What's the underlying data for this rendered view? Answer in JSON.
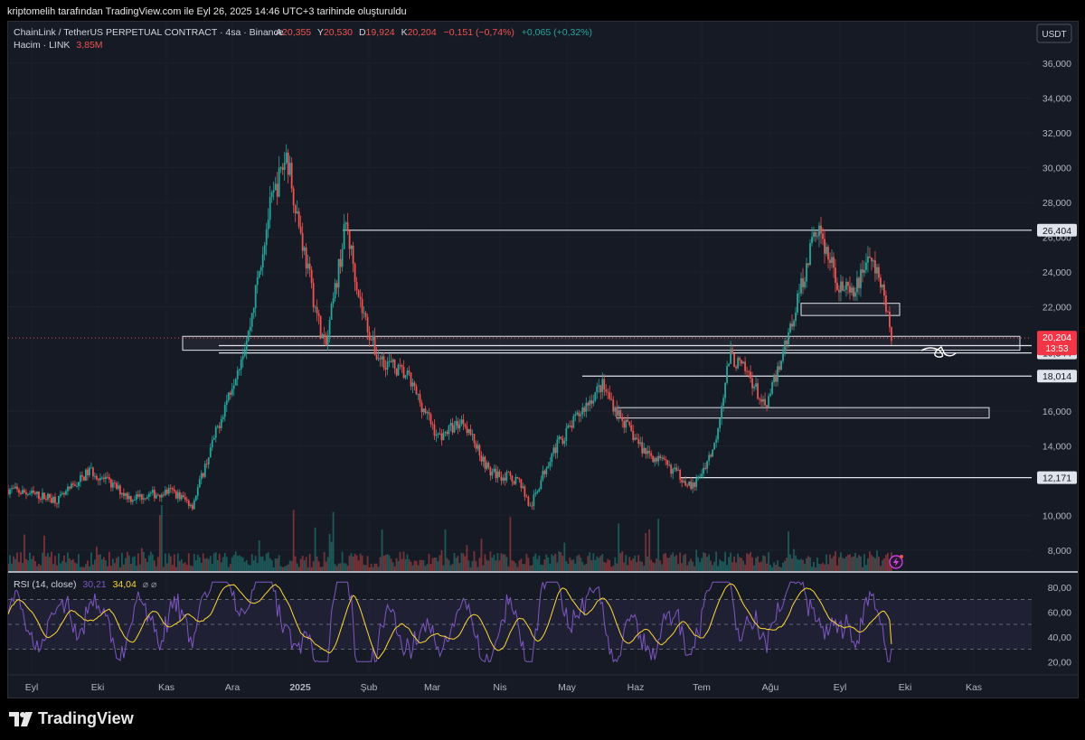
{
  "header": {
    "text": "kriptomelih tarafından TradingView.com ile Eyl 26, 2025 14:46 UTC+3 tarihinde oluşturuldu"
  },
  "legend": {
    "symbol": "ChainLink / TetherUS PERPETUAL CONTRACT · 4sa · Binance",
    "ohlc": [
      {
        "label": "A",
        "value": "20,355"
      },
      {
        "label": "Y",
        "value": "20,530"
      },
      {
        "label": "D",
        "value": "19,924"
      },
      {
        "label": "K",
        "value": "20,204"
      }
    ],
    "change": "−0,151 (−0,74%)",
    "change2": "+0,065 (+0,32%)",
    "volume_label": "Hacim · LINK",
    "volume_value": "3,85M",
    "rsi_label": "RSI (14, close)",
    "rsi_value": "30,21",
    "rsi_ma_value": "34,04",
    "rsi_icons": "⌀ ⌀"
  },
  "currency_button": "USDT",
  "footer": {
    "brand": "TradingView"
  },
  "colors": {
    "up": "#26a69a",
    "down": "#ef5350",
    "rsi": "#7e57c2",
    "rsi_ma": "#fdd835",
    "price_tag": "#f23645",
    "level_line": "#e0e3eb"
  },
  "chart_data": {
    "type": "candlestick",
    "title": "ChainLink / TetherUS PERPETUAL CONTRACT · 4sa · Binance",
    "y_axis_ticks": [
      "36,000",
      "34,000",
      "32,000",
      "30,000",
      "28,000",
      "26,000",
      "24,000",
      "22,000",
      "16,000",
      "14,000",
      "10,000",
      "8,000"
    ],
    "ylim": [
      6.8,
      38.4
    ],
    "x_axis_ticks": [
      "Eyl",
      "Eki",
      "Kas",
      "Ara",
      "2025",
      "Şub",
      "Mar",
      "Nis",
      "May",
      "Haz",
      "Tem",
      "Ağu",
      "Eyl",
      "Eki",
      "Kas"
    ],
    "price_path": [
      [
        0,
        11.5
      ],
      [
        0.05,
        10.9
      ],
      [
        0.08,
        12.6
      ],
      [
        0.12,
        11.0
      ],
      [
        0.16,
        11.4
      ],
      [
        0.18,
        10.6
      ],
      [
        0.21,
        16.0
      ],
      [
        0.235,
        20.5
      ],
      [
        0.255,
        27.5
      ],
      [
        0.272,
        30.8
      ],
      [
        0.285,
        26.5
      ],
      [
        0.3,
        22.0
      ],
      [
        0.31,
        19.5
      ],
      [
        0.33,
        26.8
      ],
      [
        0.345,
        22.0
      ],
      [
        0.36,
        19.2
      ],
      [
        0.39,
        18.0
      ],
      [
        0.42,
        14.5
      ],
      [
        0.445,
        15.5
      ],
      [
        0.47,
        12.5
      ],
      [
        0.5,
        12.0
      ],
      [
        0.51,
        10.4
      ],
      [
        0.53,
        13.5
      ],
      [
        0.56,
        16.0
      ],
      [
        0.58,
        17.5
      ],
      [
        0.6,
        15.5
      ],
      [
        0.62,
        13.8
      ],
      [
        0.65,
        12.6
      ],
      [
        0.67,
        11.6
      ],
      [
        0.69,
        14.0
      ],
      [
        0.705,
        19.2
      ],
      [
        0.725,
        18.0
      ],
      [
        0.74,
        16.0
      ],
      [
        0.765,
        21.0
      ],
      [
        0.79,
        26.7
      ],
      [
        0.81,
        23.5
      ],
      [
        0.825,
        22.5
      ],
      [
        0.84,
        25.0
      ],
      [
        0.855,
        23.0
      ],
      [
        0.863,
        20.2
      ]
    ],
    "horizontal_levels": [
      {
        "label": "26,404",
        "value": 26.404
      },
      {
        "label": "19,767",
        "value": 19.767
      },
      {
        "label": "19,344",
        "value": 19.344
      },
      {
        "label": "18,014",
        "value": 18.014
      },
      {
        "label": "12,171",
        "value": 12.171
      }
    ],
    "zones": [
      {
        "from_x": 0.0,
        "to_x": 0.997,
        "low": 19.5,
        "high": 20.3
      },
      {
        "from_x": 0.775,
        "to_x": 0.874,
        "low": 21.5,
        "high": 22.2
      },
      {
        "from_x": 0.595,
        "to_x": 0.962,
        "low": 15.6,
        "high": 16.2
      }
    ],
    "last_price": {
      "label": "20,204",
      "value": 20.204,
      "countdown": "13:53"
    },
    "volume": {
      "label": "Hacim · LINK",
      "last": "3,85M"
    },
    "rsi": {
      "period": 14,
      "source": "close",
      "value": 30.21,
      "ma_value": 34.04,
      "ticks": [
        "80,00",
        "60,00",
        "40,00",
        "20,00"
      ],
      "ylim": [
        10,
        90
      ],
      "bands": [
        30,
        50,
        70
      ]
    }
  }
}
